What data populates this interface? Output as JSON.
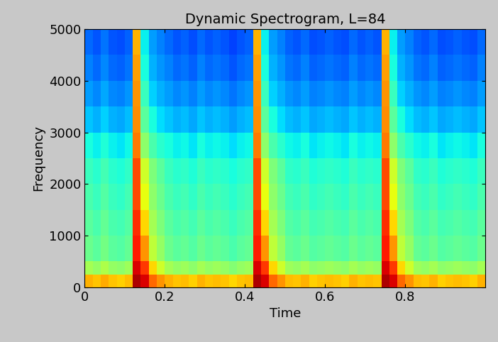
{
  "chart_data": {
    "type": "heatmap",
    "title": "Dynamic Spectrogram, L=84",
    "x_label": "Time",
    "y_label": "Frequency",
    "xlim": [
      0,
      1.0
    ],
    "xticks": [
      0,
      0.2,
      0.4,
      0.6,
      0.8
    ],
    "ylim": [
      0,
      5000
    ],
    "yticks": [
      0,
      1000,
      2000,
      3000,
      4000,
      5000
    ],
    "time_edges": [
      0,
      0.02,
      0.04,
      0.06,
      0.08,
      0.1,
      0.12,
      0.14,
      0.16,
      0.18,
      0.2,
      0.22,
      0.24,
      0.26,
      0.28,
      0.3,
      0.32,
      0.34,
      0.36,
      0.38,
      0.4,
      0.42,
      0.44,
      0.46,
      0.48,
      0.5,
      0.52,
      0.54,
      0.56,
      0.58,
      0.6,
      0.62,
      0.64,
      0.66,
      0.68,
      0.7,
      0.72,
      0.74,
      0.76,
      0.78,
      0.8,
      0.82,
      0.84,
      0.86,
      0.88,
      0.9,
      0.92,
      0.94,
      0.96,
      0.98,
      1.0
    ],
    "frequency_edges": [
      0,
      250,
      500,
      1000,
      1500,
      2000,
      2500,
      3000,
      3500,
      4000,
      4500,
      5000
    ],
    "color_range": [
      0,
      10
    ],
    "cells": [
      [
        7.2,
        7,
        7.3,
        7,
        6.9,
        7.1,
        9.6,
        9.2,
        8,
        7.5,
        7.2,
        7,
        7.1,
        6.9,
        7.2,
        7,
        7.1,
        7,
        6.8,
        7,
        7.1,
        9.6,
        9.2,
        8,
        7.5,
        7.1,
        7,
        7.2,
        6.9,
        7,
        7.1,
        7,
        6.9,
        7.2,
        7,
        7.1,
        7,
        9.6,
        9.2,
        8,
        7.5,
        7.1,
        7,
        7.2,
        6.9,
        7,
        7.1,
        7,
        6.9,
        7.2
      ],
      [
        5.5,
        5.3,
        5.6,
        5.3,
        5.2,
        5.4,
        9.2,
        8.5,
        6.8,
        6,
        5.5,
        5.3,
        5.4,
        5.2,
        5.5,
        5.3,
        5.4,
        5.3,
        5.1,
        5.3,
        5.4,
        9.2,
        8.5,
        6.8,
        6,
        5.4,
        5.3,
        5.5,
        5.2,
        5.3,
        5.4,
        5.3,
        5.2,
        5.5,
        5.3,
        5.4,
        5.3,
        9.2,
        8.5,
        6.8,
        6,
        5.4,
        5.3,
        5.5,
        5.2,
        5.3,
        5.4,
        5.3,
        5.2,
        5.5
      ],
      [
        4.8,
        4.6,
        4.9,
        4.6,
        4.5,
        4.7,
        8.8,
        7.5,
        5.8,
        5.3,
        4.8,
        4.6,
        4.7,
        4.5,
        4.8,
        4.6,
        4.7,
        4.6,
        4.4,
        4.6,
        4.7,
        8.8,
        7.5,
        5.8,
        5.3,
        4.7,
        4.6,
        4.8,
        4.5,
        4.6,
        4.7,
        4.6,
        4.5,
        4.8,
        4.6,
        4.7,
        4.6,
        8.8,
        7.5,
        5.8,
        5.3,
        4.7,
        4.6,
        4.8,
        4.5,
        4.6,
        4.7,
        4.6,
        4.5,
        4.8
      ],
      [
        4.6,
        4.4,
        4.7,
        4.4,
        4.3,
        4.5,
        8.6,
        6.8,
        5.5,
        5,
        4.6,
        4.4,
        4.5,
        4.3,
        4.6,
        4.4,
        4.5,
        4.4,
        4.2,
        4.4,
        4.5,
        8.6,
        6.8,
        5.5,
        5,
        4.5,
        4.4,
        4.6,
        4.3,
        4.4,
        4.5,
        4.4,
        4.3,
        4.6,
        4.4,
        4.5,
        4.4,
        8.6,
        6.8,
        5.5,
        5,
        4.5,
        4.4,
        4.6,
        4.3,
        4.4,
        4.5,
        4.4,
        4.3,
        4.6
      ],
      [
        4.4,
        4.2,
        4.5,
        4.2,
        4.1,
        4.3,
        8.3,
        6.3,
        5.2,
        4.8,
        4.4,
        4.2,
        4.3,
        4.1,
        4.4,
        4.2,
        4.3,
        4.2,
        4.0,
        4.2,
        4.3,
        8.3,
        6.3,
        5.2,
        4.8,
        4.3,
        4.2,
        4.4,
        4.1,
        4.2,
        4.3,
        4.2,
        4.1,
        4.4,
        4.2,
        4.3,
        4.2,
        8.3,
        6.3,
        5.2,
        4.8,
        4.3,
        4.2,
        4.4,
        4.1,
        4.2,
        4.3,
        4.2,
        4.1,
        4.4
      ],
      [
        4.2,
        4.0,
        4.3,
        4.0,
        3.9,
        4.1,
        8.3,
        6,
        5,
        4.6,
        4.2,
        4.0,
        4.1,
        3.9,
        4.2,
        4.0,
        4.1,
        4.0,
        3.8,
        4.0,
        4.1,
        8.3,
        6,
        5,
        4.6,
        4.1,
        4.0,
        4.2,
        3.9,
        4.0,
        4.1,
        4.0,
        3.9,
        4.2,
        4.0,
        4.1,
        4.0,
        8.3,
        6,
        5,
        4.6,
        4.1,
        4.0,
        4.2,
        3.9,
        4.0,
        4.1,
        4.0,
        3.9,
        4.2
      ],
      [
        3.8,
        3.6,
        3.9,
        3.6,
        3.5,
        3.7,
        7.8,
        5.2,
        4.4,
        4,
        3.8,
        3.6,
        3.7,
        3.5,
        3.8,
        3.6,
        3.7,
        3.6,
        3.4,
        3.6,
        3.7,
        7.8,
        5.2,
        4.4,
        4,
        3.7,
        3.6,
        3.8,
        3.5,
        3.6,
        3.7,
        3.6,
        3.5,
        3.8,
        3.6,
        3.7,
        3.6,
        7.8,
        5.2,
        4.4,
        4,
        3.7,
        3.6,
        3.8,
        3.5,
        3.6,
        3.7,
        3.6,
        3.5,
        3.8
      ],
      [
        3.2,
        3.0,
        3.3,
        3.0,
        2.9,
        3.1,
        7.6,
        4.6,
        3.8,
        3.4,
        3.2,
        3.0,
        3.1,
        2.9,
        3.2,
        3.0,
        3.1,
        3.0,
        2.8,
        3.0,
        3.1,
        7.6,
        4.6,
        3.8,
        3.4,
        3.1,
        3.0,
        3.2,
        2.9,
        3.0,
        3.1,
        3.0,
        2.9,
        3.2,
        3.0,
        3.1,
        3.0,
        7.6,
        4.6,
        3.8,
        3.4,
        3.1,
        3.0,
        3.2,
        2.9,
        3.0,
        3.1,
        3.0,
        2.9,
        3.2
      ],
      [
        2.8,
        2.6,
        2.9,
        2.6,
        2.5,
        2.7,
        7.5,
        4.2,
        3.3,
        3.0,
        2.8,
        2.6,
        2.7,
        2.5,
        2.8,
        2.6,
        2.7,
        2.6,
        2.4,
        2.6,
        2.7,
        7.5,
        4.2,
        3.3,
        3.0,
        2.7,
        2.6,
        2.8,
        2.5,
        2.6,
        2.7,
        2.6,
        2.5,
        2.8,
        2.6,
        2.7,
        2.6,
        7.5,
        4.2,
        3.3,
        3.0,
        2.7,
        2.6,
        2.8,
        2.5,
        2.6,
        2.7,
        2.6,
        2.5,
        2.8
      ],
      [
        2.5,
        2.3,
        2.6,
        2.3,
        2.2,
        2.4,
        7.4,
        3.8,
        3,
        2.7,
        2.5,
        2.3,
        2.4,
        2.2,
        2.5,
        2.3,
        2.4,
        2.3,
        2.1,
        2.3,
        2.4,
        7.4,
        3.8,
        3,
        2.7,
        2.4,
        2.3,
        2.5,
        2.2,
        2.3,
        2.4,
        2.3,
        2.2,
        2.5,
        2.3,
        2.4,
        2.3,
        7.4,
        3.8,
        3,
        2.7,
        2.4,
        2.3,
        2.5,
        2.2,
        2.3,
        2.4,
        2.3,
        2.2,
        2.5
      ],
      [
        2.3,
        2.1,
        2.4,
        2.1,
        2.0,
        2.2,
        7.2,
        3.6,
        2.8,
        2.5,
        2.3,
        2.1,
        2.2,
        2.0,
        2.3,
        2.1,
        2.2,
        2.1,
        1.9,
        2.1,
        2.2,
        7.2,
        3.6,
        2.8,
        2.5,
        2.2,
        2.1,
        2.3,
        2.0,
        2.1,
        2.2,
        2.1,
        2.0,
        2.3,
        2.1,
        2.2,
        2.1,
        7.2,
        3.6,
        2.8,
        2.5,
        2.2,
        2.1,
        2.3,
        2.0,
        2.1,
        2.2,
        2.1,
        2.0,
        2.3
      ]
    ]
  }
}
